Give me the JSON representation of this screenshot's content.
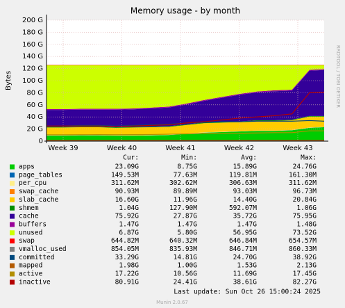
{
  "chart_data": {
    "type": "area",
    "title": "Memory usage - by month",
    "ylabel": "Bytes",
    "side_label": "RRDTOOL / TOBI OETIKER",
    "footer": "Last update: Sun Oct 26 15:00:24 2025",
    "version": "Munin 2.0.67",
    "stat_headers": [
      "Cur:",
      "Min:",
      "Avg:",
      "Max:"
    ],
    "x": [
      38.72,
      39.0,
      39.3,
      39.6,
      39.9,
      40.2,
      40.5,
      40.8,
      41.1,
      41.4,
      41.7,
      42.0,
      42.3,
      42.6,
      42.9,
      43.2,
      43.45
    ],
    "xlim": [
      38.716,
      43.45
    ],
    "xticks": [
      {
        "value": 39,
        "label": "Week 39"
      },
      {
        "value": 40,
        "label": "Week 40"
      },
      {
        "value": 41,
        "label": "Week 41"
      },
      {
        "value": 42,
        "label": "Week 42"
      },
      {
        "value": 43,
        "label": "Week 43"
      }
    ],
    "ylim": [
      0,
      200
    ],
    "yticks": [
      0,
      {
        "value": 20,
        "label": "20 G"
      },
      {
        "value": 40,
        "label": "40 G"
      },
      {
        "value": 60,
        "label": "60 G"
      },
      {
        "value": 80,
        "label": "80 G"
      },
      {
        "value": 100,
        "label": "100 G"
      },
      {
        "value": 120,
        "label": "120 G"
      },
      {
        "value": 140,
        "label": "140 G"
      },
      {
        "value": 160,
        "label": "160 G"
      },
      {
        "value": 180,
        "label": "180 G"
      },
      {
        "value": 200,
        "label": "200 G"
      }
    ],
    "grid": true,
    "series": [
      {
        "name": "apps",
        "color": "#00cc00",
        "draw": "stack",
        "stats": [
          "23.09G",
          "8.75G",
          "15.89G",
          "24.76G"
        ],
        "values": [
          9,
          9,
          9.5,
          9.5,
          9,
          9,
          9.5,
          10,
          12,
          14,
          15,
          16,
          17,
          17,
          18,
          22,
          23
        ]
      },
      {
        "name": "page_tables",
        "color": "#0066b3",
        "draw": "stack",
        "stats": [
          "149.53M",
          "77.63M",
          "119.81M",
          "161.30M"
        ],
        "values": [
          0.15,
          0.15,
          0.15,
          0.15,
          0.15,
          0.15,
          0.15,
          0.15,
          0.15,
          0.15,
          0.15,
          0.15,
          0.15,
          0.15,
          0.15,
          0.15,
          0.15
        ]
      },
      {
        "name": "per_cpu",
        "color": "#ffee88",
        "draw": "stack",
        "stats": [
          "311.62M",
          "302.62M",
          "306.63M",
          "311.62M"
        ],
        "values": [
          0.3,
          0.3,
          0.3,
          0.3,
          0.3,
          0.3,
          0.3,
          0.3,
          0.3,
          0.3,
          0.3,
          0.3,
          0.3,
          0.3,
          0.3,
          0.3,
          0.3
        ]
      },
      {
        "name": "swap_cache",
        "color": "#ff8000",
        "draw": "stack",
        "stats": [
          "90.93M",
          "89.89M",
          "93.03M",
          "96.73M"
        ],
        "values": [
          0.09,
          0.09,
          0.09,
          0.09,
          0.09,
          0.09,
          0.09,
          0.09,
          0.09,
          0.09,
          0.09,
          0.09,
          0.09,
          0.09,
          0.09,
          0.09,
          0.09
        ]
      },
      {
        "name": "slab_cache",
        "color": "#ffcc00",
        "draw": "stack",
        "stats": [
          "16.60G",
          "11.96G",
          "14.40G",
          "20.84G"
        ],
        "values": [
          13,
          13,
          13,
          13,
          12.5,
          13,
          13,
          13,
          14,
          15,
          15,
          15,
          16,
          16,
          16,
          18,
          17
        ]
      },
      {
        "name": "shmem",
        "color": "#008f00",
        "draw": "stack",
        "stats": [
          "1.04G",
          "127.90M",
          "592.07M",
          "1.06G"
        ],
        "values": [
          1,
          1,
          1,
          1,
          1,
          1,
          1,
          1,
          1,
          1,
          1,
          1,
          1,
          1,
          1,
          1,
          1
        ]
      },
      {
        "name": "cache",
        "color": "#330099",
        "draw": "stack",
        "stats": [
          "75.92G",
          "27.87G",
          "35.72G",
          "75.95G"
        ],
        "values": [
          28,
          28,
          28,
          28,
          29,
          29,
          30,
          31,
          33,
          36,
          40,
          44,
          46,
          48,
          48,
          75,
          76
        ]
      },
      {
        "name": "buffers",
        "color": "#990099",
        "draw": "stack",
        "stats": [
          "1.47G",
          "1.47G",
          "1.47G",
          "1.48G"
        ],
        "values": [
          1.47,
          1.47,
          1.47,
          1.47,
          1.47,
          1.47,
          1.47,
          1.47,
          1.47,
          1.47,
          1.47,
          1.47,
          1.47,
          1.47,
          1.47,
          1.47,
          1.47
        ]
      },
      {
        "name": "unused",
        "color": "#ccff00",
        "draw": "stack",
        "stats": [
          "6.87G",
          "5.80G",
          "56.95G",
          "73.52G"
        ],
        "values": [
          72.5,
          72.5,
          72,
          72,
          72,
          71.5,
          70,
          68.5,
          63.5,
          57.5,
          52.5,
          47.5,
          43.5,
          41.5,
          40.5,
          7.5,
          6.5
        ]
      },
      {
        "name": "swap",
        "color": "#ff0000",
        "draw": "stack",
        "stats": [
          "644.82M",
          "640.32M",
          "646.84M",
          "654.57M"
        ],
        "values": [
          0.64,
          0.64,
          0.64,
          0.64,
          0.64,
          0.64,
          0.64,
          0.64,
          0.64,
          0.64,
          0.64,
          0.64,
          0.64,
          0.64,
          0.64,
          0.64,
          0.64
        ]
      },
      {
        "name": "vmalloc_used",
        "color": "#808080",
        "draw": "line",
        "stats": [
          "854.05M",
          "835.93M",
          "846.71M",
          "860.33M"
        ],
        "values": [
          0.85,
          0.85,
          0.85,
          0.85,
          0.85,
          0.85,
          0.85,
          0.85,
          0.85,
          0.85,
          0.85,
          0.85,
          0.85,
          0.85,
          0.85,
          0.85,
          0.85
        ]
      },
      {
        "name": "committed",
        "color": "#00487d",
        "draw": "line",
        "stats": [
          "33.29G",
          "14.81G",
          "24.70G",
          "38.92G"
        ],
        "values": [
          25,
          25,
          26,
          26,
          25,
          26,
          27,
          28,
          30,
          31,
          32,
          32,
          33,
          33,
          33,
          34,
          33
        ]
      },
      {
        "name": "mapped",
        "color": "#b35a00",
        "draw": "line",
        "stats": [
          "1.98G",
          "1.00G",
          "1.53G",
          "2.13G"
        ],
        "values": [
          1.5,
          1.5,
          1.5,
          1.5,
          1.5,
          1.5,
          1.5,
          1.5,
          1.5,
          1.5,
          1.5,
          1.5,
          1.5,
          1.5,
          1.5,
          1.5,
          1.5
        ]
      },
      {
        "name": "active",
        "color": "#b38f00",
        "draw": "line",
        "stats": [
          "17.22G",
          "10.56G",
          "11.69G",
          "17.45G"
        ],
        "values": [
          10.5,
          10.5,
          10.6,
          10.8,
          10.6,
          10.8,
          11,
          11.5,
          12,
          12.5,
          13,
          13,
          13.5,
          14,
          14,
          17,
          17
        ]
      },
      {
        "name": "inactive",
        "color": "#b30000",
        "draw": "line",
        "stats": [
          "80.91G",
          "24.41G",
          "38.61G",
          "82.27G"
        ],
        "values": [
          25,
          25,
          25,
          25,
          24.5,
          25,
          26,
          27,
          30,
          32,
          35,
          38,
          40,
          42,
          45,
          80,
          81
        ]
      }
    ]
  }
}
